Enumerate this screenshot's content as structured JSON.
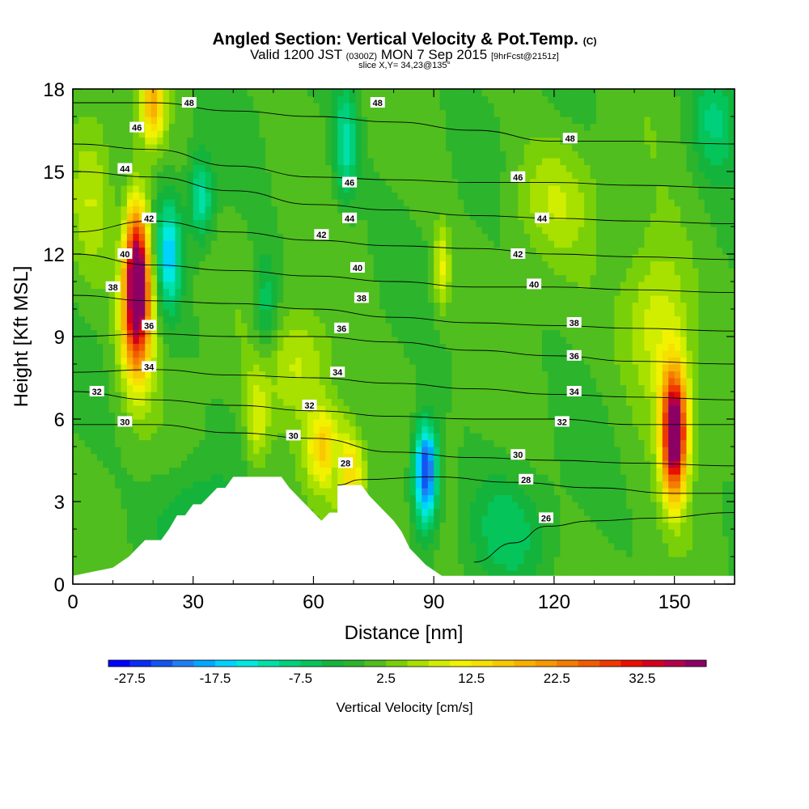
{
  "header": {
    "title_main": "Angled Section: Vertical Velocity & Pot.Temp.",
    "title_mark": "(C)",
    "subtitle_a": "Valid 1200 JST",
    "subtitle_b": "(0300Z)",
    "subtitle_c": "MON 7 Sep 2015",
    "subtitle_d": "[9hrFcst@2151z]",
    "slice": "slice X,Y= 34,23@135°"
  },
  "chart_data": {
    "type": "heatmap",
    "xlabel": "Distance [nm]",
    "ylabel": "Height [Kft MSL]",
    "xlim": [
      0,
      165
    ],
    "ylim": [
      0,
      18
    ],
    "x_ticks": [
      "0",
      "30",
      "60",
      "90",
      "120",
      "150"
    ],
    "x_tick_values": [
      0,
      30,
      60,
      90,
      120,
      150
    ],
    "y_ticks": [
      "0",
      "3",
      "6",
      "9",
      "12",
      "15",
      "18"
    ],
    "y_tick_values": [
      0,
      3,
      6,
      9,
      12,
      15,
      18
    ],
    "grid": false,
    "colorbar": {
      "label": "Vertical Velocity [cm/s]",
      "tick_labels": [
        "-27.5",
        "-17.5",
        "-7.5",
        "2.5",
        "12.5",
        "22.5",
        "32.5"
      ],
      "tick_values": [
        -27.5,
        -17.5,
        -7.5,
        2.5,
        12.5,
        22.5,
        32.5
      ],
      "min": -30,
      "max": 40,
      "step": 2.5,
      "colors": [
        "#0000ff",
        "#0a2cf2",
        "#1454f0",
        "#1e7ff2",
        "#00a8ff",
        "#00d2ff",
        "#00e8e0",
        "#00e0a8",
        "#00d07c",
        "#04c45a",
        "#14b43c",
        "#2cb42c",
        "#50be1e",
        "#7ad008",
        "#a8e000",
        "#d2ee00",
        "#f2f200",
        "#f5e000",
        "#f8c800",
        "#f8b000",
        "#f89800",
        "#f47c00",
        "#f05c00",
        "#ee3a00",
        "#e81000",
        "#d2001e",
        "#b4004a",
        "#8c0064"
      ]
    },
    "vertical_velocity_features": [
      {
        "x": 16,
        "z": 11.5,
        "value": 35,
        "sx": 3,
        "sz": 2.5
      },
      {
        "x": 16,
        "z": 9.5,
        "value": 22,
        "sx": 4,
        "sz": 2.5
      },
      {
        "x": 20,
        "z": 17.5,
        "value": 18,
        "sx": 3,
        "sz": 1.5
      },
      {
        "x": 150,
        "z": 5,
        "value": 32,
        "sx": 3,
        "sz": 2
      },
      {
        "x": 150,
        "z": 6.5,
        "value": 18,
        "sx": 3.5,
        "sz": 2
      },
      {
        "x": 146,
        "z": 9.5,
        "value": 10,
        "sx": 8,
        "sz": 3
      },
      {
        "x": 63,
        "z": 5,
        "value": 16,
        "sx": 5,
        "sz": 1.5
      },
      {
        "x": 69,
        "z": 4,
        "value": 14,
        "sx": 4,
        "sz": 1.5
      },
      {
        "x": 46,
        "z": 6,
        "value": 8,
        "sx": 3,
        "sz": 2
      },
      {
        "x": 57,
        "z": 8,
        "value": 8,
        "sx": 8,
        "sz": 2
      },
      {
        "x": 88,
        "z": 4.5,
        "value": -22,
        "sx": 3,
        "sz": 1.5
      },
      {
        "x": 88,
        "z": 3,
        "value": -12,
        "sx": 3,
        "sz": 1.5
      },
      {
        "x": 24,
        "z": 12,
        "value": -16,
        "sx": 3,
        "sz": 2
      },
      {
        "x": 32,
        "z": 14,
        "value": -12,
        "sx": 3,
        "sz": 1.5
      },
      {
        "x": 68,
        "z": 16,
        "value": -12,
        "sx": 3,
        "sz": 2
      },
      {
        "x": 48,
        "z": 10,
        "value": -8,
        "sx": 3,
        "sz": 2
      },
      {
        "x": 66,
        "z": 4.5,
        "value": -10,
        "sx": 2,
        "sz": 1
      },
      {
        "x": 92,
        "z": 11.5,
        "value": 10,
        "sx": 2,
        "sz": 1.5
      },
      {
        "x": 5,
        "z": 14,
        "value": 6,
        "sx": 5,
        "sz": 3
      },
      {
        "x": 160,
        "z": 17,
        "value": -8,
        "sx": 6,
        "sz": 2
      },
      {
        "x": 120,
        "z": 14,
        "value": 6,
        "sx": 10,
        "sz": 2
      },
      {
        "x": 108,
        "z": 2,
        "value": -6,
        "sx": 10,
        "sz": 2
      },
      {
        "x": 30,
        "z": 2.5,
        "value": -6,
        "sx": 10,
        "sz": 2
      }
    ],
    "terrain_profile": [
      [
        0,
        0.3
      ],
      [
        10,
        0.6
      ],
      [
        12,
        0.8
      ],
      [
        14,
        1.0
      ],
      [
        16,
        1.3
      ],
      [
        18,
        1.6
      ],
      [
        22,
        1.6
      ],
      [
        24,
        2.0
      ],
      [
        26,
        2.5
      ],
      [
        28,
        2.5
      ],
      [
        30,
        2.9
      ],
      [
        32,
        2.9
      ],
      [
        34,
        3.2
      ],
      [
        36,
        3.5
      ],
      [
        38,
        3.5
      ],
      [
        40,
        3.9
      ],
      [
        52,
        3.9
      ],
      [
        54,
        3.5
      ],
      [
        56,
        3.2
      ],
      [
        58,
        2.9
      ],
      [
        60,
        2.6
      ],
      [
        62,
        2.3
      ],
      [
        64,
        2.6
      ],
      [
        66,
        2.6
      ],
      [
        66,
        3.6
      ],
      [
        72,
        3.6
      ],
      [
        74,
        3.2
      ],
      [
        76,
        2.9
      ],
      [
        78,
        2.6
      ],
      [
        80,
        2.3
      ],
      [
        82,
        1.9
      ],
      [
        84,
        1.3
      ],
      [
        86,
        1.0
      ],
      [
        88,
        0.7
      ],
      [
        90,
        0.5
      ],
      [
        92,
        0.3
      ],
      [
        165,
        0.3
      ]
    ],
    "isentropes": [
      {
        "label": "26",
        "value": 26,
        "points": [
          [
            100,
            0.8
          ],
          [
            110,
            1.5
          ],
          [
            118,
            2.1
          ],
          [
            130,
            2.3
          ],
          [
            145,
            2.4
          ],
          [
            165,
            2.6
          ]
        ]
      },
      {
        "label": "28",
        "value": 28,
        "points": [
          [
            66,
            3.6
          ],
          [
            72,
            3.8
          ],
          [
            90,
            3.9
          ],
          [
            110,
            3.7
          ],
          [
            130,
            3.5
          ],
          [
            150,
            3.3
          ],
          [
            165,
            3.3
          ]
        ]
      },
      {
        "label": "30",
        "value": 30,
        "points": [
          [
            0,
            5.8
          ],
          [
            20,
            5.8
          ],
          [
            40,
            5.5
          ],
          [
            60,
            5.3
          ],
          [
            80,
            4.8
          ],
          [
            100,
            4.6
          ],
          [
            120,
            4.5
          ],
          [
            140,
            4.4
          ],
          [
            165,
            4.3
          ]
        ]
      },
      {
        "label": "32",
        "value": 32,
        "points": [
          [
            0,
            7.0
          ],
          [
            20,
            6.7
          ],
          [
            40,
            6.5
          ],
          [
            60,
            6.3
          ],
          [
            80,
            6.1
          ],
          [
            100,
            6.0
          ],
          [
            120,
            6.0
          ],
          [
            140,
            5.8
          ],
          [
            165,
            5.8
          ]
        ]
      },
      {
        "label": "34",
        "value": 34,
        "points": [
          [
            0,
            7.7
          ],
          [
            20,
            7.8
          ],
          [
            40,
            7.6
          ],
          [
            60,
            7.5
          ],
          [
            80,
            7.3
          ],
          [
            100,
            7.1
          ],
          [
            120,
            6.9
          ],
          [
            140,
            6.8
          ],
          [
            165,
            6.7
          ]
        ]
      },
      {
        "label": "36",
        "value": 36,
        "points": [
          [
            0,
            9.0
          ],
          [
            20,
            9.1
          ],
          [
            40,
            9.0
          ],
          [
            60,
            9.0
          ],
          [
            80,
            8.8
          ],
          [
            100,
            8.5
          ],
          [
            120,
            8.3
          ],
          [
            140,
            8.1
          ],
          [
            165,
            8.0
          ]
        ]
      },
      {
        "label": "38",
        "value": 38,
        "points": [
          [
            0,
            10.5
          ],
          [
            20,
            10.3
          ],
          [
            40,
            10.2
          ],
          [
            60,
            10.0
          ],
          [
            80,
            9.7
          ],
          [
            100,
            9.5
          ],
          [
            120,
            9.4
          ],
          [
            140,
            9.3
          ],
          [
            165,
            9.2
          ]
        ]
      },
      {
        "label": "40",
        "value": 40,
        "points": [
          [
            0,
            12.0
          ],
          [
            20,
            11.6
          ],
          [
            40,
            11.4
          ],
          [
            60,
            11.2
          ],
          [
            80,
            11.0
          ],
          [
            100,
            10.8
          ],
          [
            120,
            10.8
          ],
          [
            140,
            10.7
          ],
          [
            165,
            10.6
          ]
        ]
      },
      {
        "label": "42",
        "value": 42,
        "points": [
          [
            0,
            12.8
          ],
          [
            20,
            13.2
          ],
          [
            40,
            12.8
          ],
          [
            60,
            12.5
          ],
          [
            80,
            12.3
          ],
          [
            100,
            12.2
          ],
          [
            120,
            12.0
          ],
          [
            140,
            11.9
          ],
          [
            165,
            11.8
          ]
        ]
      },
      {
        "label": "44",
        "value": 44,
        "points": [
          [
            0,
            15.0
          ],
          [
            20,
            14.8
          ],
          [
            40,
            14.3
          ],
          [
            60,
            13.8
          ],
          [
            80,
            13.6
          ],
          [
            100,
            13.4
          ],
          [
            120,
            13.3
          ],
          [
            140,
            13.2
          ],
          [
            165,
            13.1
          ]
        ]
      },
      {
        "label": "46",
        "value": 46,
        "points": [
          [
            0,
            16.0
          ],
          [
            20,
            15.8
          ],
          [
            40,
            15.2
          ],
          [
            60,
            14.8
          ],
          [
            80,
            14.7
          ],
          [
            100,
            14.6
          ],
          [
            120,
            14.6
          ],
          [
            140,
            14.5
          ],
          [
            165,
            14.4
          ]
        ]
      },
      {
        "label": "48",
        "value": 48,
        "points": [
          [
            0,
            17.5
          ],
          [
            20,
            17.5
          ],
          [
            40,
            17.2
          ],
          [
            60,
            17.0
          ],
          [
            80,
            16.8
          ],
          [
            100,
            16.5
          ],
          [
            120,
            16.1
          ],
          [
            140,
            16.1
          ],
          [
            165,
            16.0
          ]
        ]
      }
    ],
    "isentrope_labels": [
      {
        "text": "26",
        "x": 118,
        "z": 2.4
      },
      {
        "text": "28",
        "x": 68,
        "z": 4.4
      },
      {
        "text": "28",
        "x": 113,
        "z": 3.8
      },
      {
        "text": "30",
        "x": 13,
        "z": 5.9
      },
      {
        "text": "30",
        "x": 55,
        "z": 5.4
      },
      {
        "text": "30",
        "x": 111,
        "z": 4.7
      },
      {
        "text": "32",
        "x": 6,
        "z": 7.0
      },
      {
        "text": "32",
        "x": 59,
        "z": 6.5
      },
      {
        "text": "32",
        "x": 122,
        "z": 5.9
      },
      {
        "text": "34",
        "x": 19,
        "z": 7.9
      },
      {
        "text": "34",
        "x": 66,
        "z": 7.7
      },
      {
        "text": "34",
        "x": 125,
        "z": 7.0
      },
      {
        "text": "36",
        "x": 19,
        "z": 9.4
      },
      {
        "text": "36",
        "x": 67,
        "z": 9.3
      },
      {
        "text": "36",
        "x": 125,
        "z": 8.3
      },
      {
        "text": "38",
        "x": 10,
        "z": 10.8
      },
      {
        "text": "38",
        "x": 72,
        "z": 10.4
      },
      {
        "text": "38",
        "x": 125,
        "z": 9.5
      },
      {
        "text": "40",
        "x": 13,
        "z": 12.0
      },
      {
        "text": "40",
        "x": 71,
        "z": 11.5
      },
      {
        "text": "40",
        "x": 115,
        "z": 10.9
      },
      {
        "text": "42",
        "x": 19,
        "z": 13.3
      },
      {
        "text": "42",
        "x": 62,
        "z": 12.7
      },
      {
        "text": "42",
        "x": 111,
        "z": 12.0
      },
      {
        "text": "44",
        "x": 13,
        "z": 15.1
      },
      {
        "text": "44",
        "x": 69,
        "z": 13.3
      },
      {
        "text": "44",
        "x": 117,
        "z": 13.3
      },
      {
        "text": "46",
        "x": 16,
        "z": 16.6
      },
      {
        "text": "46",
        "x": 69,
        "z": 14.6
      },
      {
        "text": "46",
        "x": 111,
        "z": 14.8
      },
      {
        "text": "48",
        "x": 29,
        "z": 17.5
      },
      {
        "text": "48",
        "x": 76,
        "z": 17.5
      },
      {
        "text": "48",
        "x": 124,
        "z": 16.2
      }
    ]
  }
}
